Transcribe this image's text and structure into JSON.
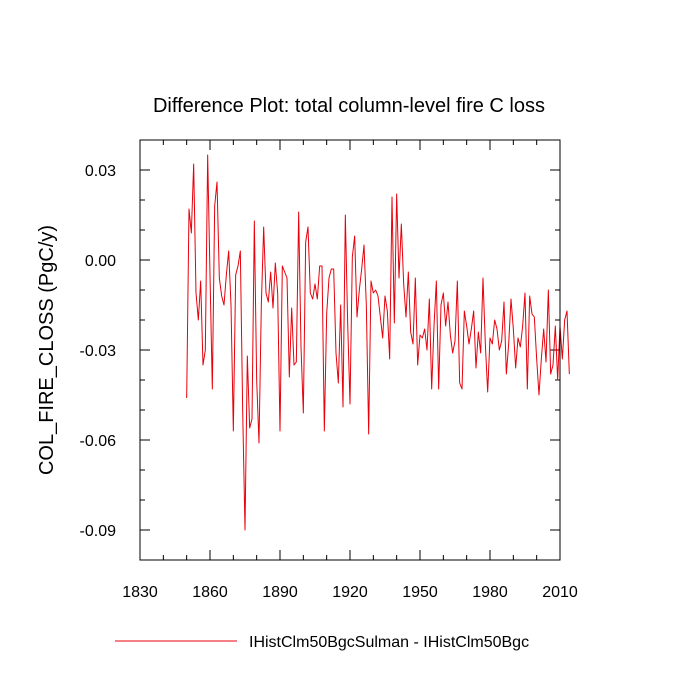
{
  "chart_data": {
    "type": "line",
    "title": "Difference Plot: total column-level fire C loss",
    "xlabel": "",
    "ylabel": "COL_FIRE_CLOSS  (PgC/y)",
    "xlim": [
      1830,
      2010
    ],
    "ylim": [
      -0.1,
      0.04
    ],
    "x_ticks": [
      1830,
      1860,
      1890,
      1920,
      1950,
      1980,
      2010
    ],
    "x_tick_labels": [
      "1830",
      "1860",
      "1890",
      "1920",
      "1950",
      "1980",
      "2010"
    ],
    "x_minor_step": 10,
    "y_ticks": [
      0.03,
      0.0,
      -0.03,
      -0.06,
      -0.09
    ],
    "y_tick_labels": [
      "0.03",
      "0.00",
      "-0.03",
      "-0.06",
      "-0.09"
    ],
    "y_minor_step": 0.01,
    "grid": false,
    "legend_position": "bottom",
    "series": [
      {
        "name": "IHistClm50BgcSulman - IHistClm50Bgc",
        "color": "#e8000b",
        "x_start": 1850,
        "x_step": 1,
        "values": [
          -0.046,
          0.017,
          0.009,
          0.032,
          -0.011,
          -0.02,
          -0.007,
          -0.035,
          -0.03,
          0.035,
          -0.005,
          -0.043,
          0.018,
          0.026,
          -0.006,
          -0.012,
          -0.015,
          -0.005,
          0.003,
          -0.015,
          -0.057,
          -0.005,
          -0.002,
          0.003,
          -0.05,
          -0.09,
          -0.032,
          -0.056,
          -0.053,
          0.013,
          -0.04,
          -0.061,
          -0.015,
          0.011,
          -0.011,
          -0.014,
          -0.004,
          -0.016,
          -0.001,
          -0.011,
          -0.057,
          -0.002,
          -0.004,
          -0.006,
          -0.039,
          -0.016,
          -0.035,
          -0.034,
          0.016,
          -0.029,
          -0.051,
          0.006,
          0.011,
          -0.011,
          -0.013,
          -0.008,
          -0.013,
          -0.002,
          -0.002,
          -0.057,
          -0.018,
          -0.006,
          -0.003,
          -0.003,
          -0.031,
          -0.041,
          -0.015,
          -0.049,
          0.015,
          -0.021,
          -0.048,
          0.001,
          0.008,
          -0.019,
          -0.01,
          -0.003,
          0.005,
          -0.015,
          -0.058,
          -0.007,
          -0.011,
          -0.01,
          -0.012,
          -0.019,
          -0.026,
          -0.012,
          -0.017,
          -0.033,
          0.021,
          -0.021,
          0.022,
          -0.006,
          0.012,
          -0.008,
          -0.019,
          -0.004,
          -0.024,
          -0.028,
          -0.006,
          -0.035,
          -0.025,
          -0.026,
          -0.023,
          -0.03,
          -0.013,
          -0.043,
          -0.022,
          -0.007,
          -0.043,
          -0.015,
          -0.011,
          -0.022,
          -0.014,
          -0.025,
          -0.031,
          -0.027,
          -0.007,
          -0.041,
          -0.043,
          -0.017,
          -0.022,
          -0.028,
          -0.023,
          -0.017,
          -0.036,
          -0.024,
          -0.031,
          -0.006,
          -0.028,
          -0.044,
          -0.026,
          -0.028,
          -0.02,
          -0.023,
          -0.03,
          -0.027,
          -0.014,
          -0.038,
          -0.028,
          -0.013,
          -0.023,
          -0.036,
          -0.026,
          -0.029,
          -0.022,
          -0.011,
          -0.043,
          -0.012,
          -0.018,
          -0.019,
          -0.033,
          -0.045,
          -0.033,
          -0.023,
          -0.034,
          -0.01,
          -0.038,
          -0.035,
          -0.022,
          -0.04,
          -0.022,
          -0.033,
          -0.02,
          -0.017,
          -0.038
        ]
      }
    ]
  }
}
